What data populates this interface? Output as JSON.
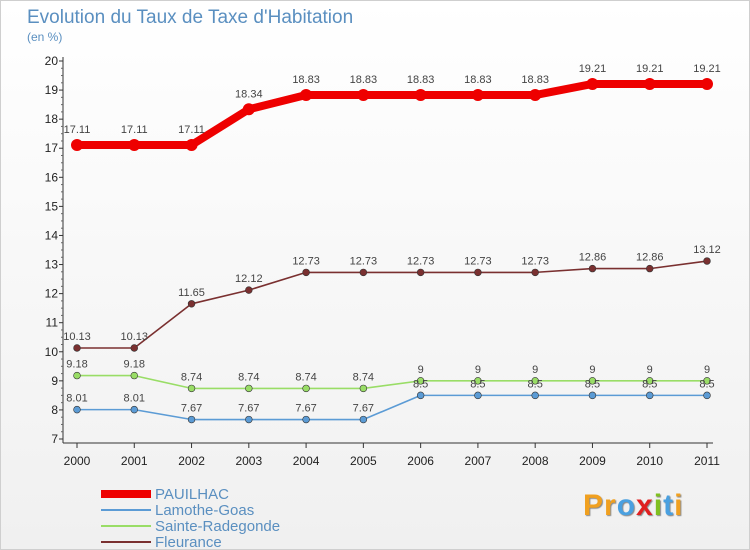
{
  "title": "Evolution du Taux de Taxe d'Habitation",
  "unit_label": "(en %)",
  "logo_text": "Proxiti",
  "logo_colors": [
    "#f0a020",
    "#f0a020",
    "#4aa0e0",
    "#e02020",
    "#80c020",
    "#4aa0e0",
    "#f0a020"
  ],
  "chart_data": {
    "type": "line",
    "title": "Evolution du Taux de Taxe d'Habitation",
    "ylabel": "(en %)",
    "xlabel": "",
    "x": [
      "2000",
      "2001",
      "2002",
      "2003",
      "2004",
      "2005",
      "2006",
      "2007",
      "2008",
      "2009",
      "2010",
      "2011"
    ],
    "ylim": [
      7,
      20
    ],
    "yticks": [
      "7",
      "8",
      "9",
      "10",
      "11",
      "12",
      "13",
      "14",
      "15",
      "16",
      "17",
      "18",
      "19",
      "20"
    ],
    "legend_position": "bottom-left",
    "series": [
      {
        "name": "PAUILHAC",
        "color": "#ee0000",
        "values": [
          17.11,
          17.11,
          17.11,
          18.34,
          18.83,
          18.83,
          18.83,
          18.83,
          18.83,
          19.21,
          19.21,
          19.21
        ],
        "labels": [
          "17.11",
          "17.11",
          "17.11",
          "18.34",
          "18.83",
          "18.83",
          "18.83",
          "18.83",
          "18.83",
          "19.21",
          "19.21",
          "19.21"
        ]
      },
      {
        "name": "Lamothe-Goas",
        "color": "#5b9bd5",
        "values": [
          8.01,
          8.01,
          7.67,
          7.67,
          7.67,
          7.67,
          8.5,
          8.5,
          8.5,
          8.5,
          8.5,
          8.5
        ],
        "labels": [
          "8.01",
          "8.01",
          "7.67",
          "7.67",
          "7.67",
          "7.67",
          "8.5",
          "8.5",
          "8.5",
          "8.5",
          "8.5",
          "8.5"
        ]
      },
      {
        "name": "Sainte-Radegonde",
        "color": "#99dd66",
        "values": [
          9.18,
          9.18,
          8.74,
          8.74,
          8.74,
          8.74,
          9,
          9,
          9,
          9,
          9,
          9
        ],
        "labels": [
          "9.18",
          "9.18",
          "8.74",
          "8.74",
          "8.74",
          "8.74",
          "9",
          "9",
          "9",
          "9",
          "9",
          "9"
        ]
      },
      {
        "name": "Fleurance",
        "color": "#7a3030",
        "values": [
          10.13,
          10.13,
          11.65,
          12.12,
          12.73,
          12.73,
          12.73,
          12.73,
          12.73,
          12.86,
          12.86,
          13.12
        ],
        "labels": [
          "10.13",
          "10.13",
          "11.65",
          "12.12",
          "12.73",
          "12.73",
          "12.73",
          "12.73",
          "12.73",
          "12.86",
          "12.86",
          "13.12"
        ]
      }
    ]
  }
}
